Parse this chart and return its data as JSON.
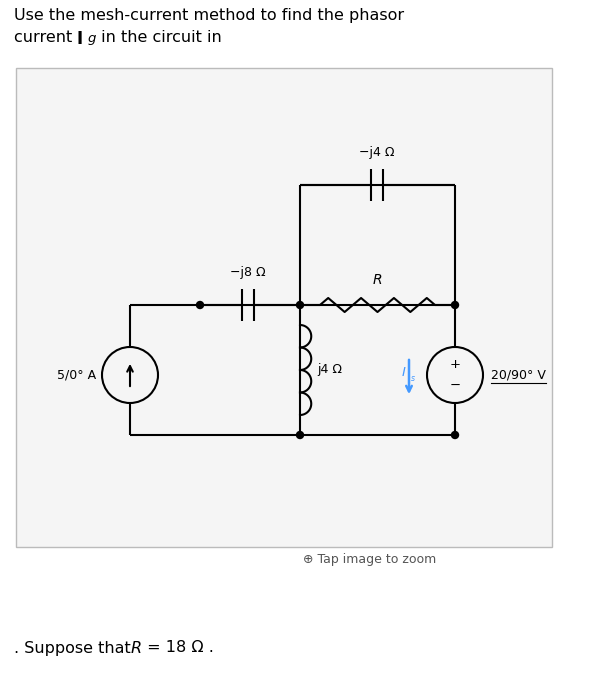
{
  "bg_color": "#ffffff",
  "box_edge_color": "#bbbbbb",
  "box_face_color": "#f5f5f5",
  "wire_color": "#000000",
  "node_color": "#000000",
  "cyan_color": "#4499ff",
  "label_neg_j4": "−j4 Ω",
  "label_neg_j8": "−j8 Ω",
  "label_R": "R",
  "label_j4": "j4 Ω",
  "label_src_left": "5/0° A",
  "label_src_right": "20/90° V",
  "label_Is": "I",
  "label_Is_sub": "s",
  "tap_text": "Tap image to zoom",
  "title1": "Use the mesh-current method to find the phasor",
  "title2_pre": "current ",
  "title2_I": "I",
  "title2_g": "g",
  "title2_post": " in the circuit in",
  "footer_pre": ". Suppose that ",
  "footer_R": "R",
  "footer_post": " = 18 Ω ."
}
